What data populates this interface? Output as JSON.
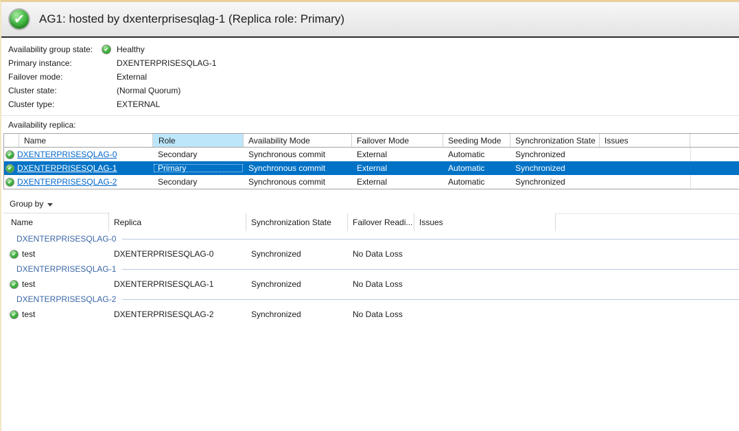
{
  "header": {
    "title": "AG1: hosted by dxenterprisesqlag-1 (Replica role: Primary)",
    "status_icon": "healthy-check-icon"
  },
  "summary": {
    "rows": [
      {
        "label": "Availability group state:",
        "value": "Healthy",
        "icon": "healthy-check-icon"
      },
      {
        "label": "Primary instance:",
        "value": "DXENTERPRISESQLAG-1"
      },
      {
        "label": "Failover mode:",
        "value": "External"
      },
      {
        "label": "Cluster state:",
        "value": "(Normal Quorum)"
      },
      {
        "label": "Cluster type:",
        "value": "EXTERNAL"
      }
    ]
  },
  "replica_section": {
    "label": "Availability replica:",
    "table": {
      "columns": [
        "Name",
        "Role",
        "Availability Mode",
        "Failover Mode",
        "Seeding Mode",
        "Synchronization State",
        "Issues"
      ],
      "sorted_column": "Role",
      "selected_row_index": 1,
      "rows": [
        {
          "icon": "healthy-check-icon",
          "name": "DXENTERPRISESQLAG-0",
          "role": "Secondary",
          "availability_mode": "Synchronous commit",
          "failover_mode": "External",
          "seeding_mode": "Automatic",
          "synchronization_state": "Synchronized",
          "issues": ""
        },
        {
          "icon": "healthy-check-icon",
          "name": "DXENTERPRISESQLAG-1",
          "role": "Primary",
          "availability_mode": "Synchronous commit",
          "failover_mode": "External",
          "seeding_mode": "Automatic",
          "synchronization_state": "Synchronized",
          "issues": ""
        },
        {
          "icon": "healthy-check-icon",
          "name": "DXENTERPRISESQLAG-2",
          "role": "Secondary",
          "availability_mode": "Synchronous commit",
          "failover_mode": "External",
          "seeding_mode": "Automatic",
          "synchronization_state": "Synchronized",
          "issues": ""
        }
      ]
    }
  },
  "group_section": {
    "group_by_label": "Group by",
    "table": {
      "columns": [
        "Name",
        "Replica",
        "Synchronization State",
        "Failover Readi...",
        "Issues"
      ],
      "groups": [
        {
          "label": "DXENTERPRISESQLAG-0",
          "rows": [
            {
              "icon": "healthy-check-icon",
              "name": "test",
              "replica": "DXENTERPRISESQLAG-0",
              "synchronization_state": "Synchronized",
              "failover_readiness": "No Data Loss",
              "issues": ""
            }
          ]
        },
        {
          "label": "DXENTERPRISESQLAG-1",
          "rows": [
            {
              "icon": "healthy-check-icon",
              "name": "test",
              "replica": "DXENTERPRISESQLAG-1",
              "synchronization_state": "Synchronized",
              "failover_readiness": "No Data Loss",
              "issues": ""
            }
          ]
        },
        {
          "label": "DXENTERPRISESQLAG-2",
          "rows": [
            {
              "icon": "healthy-check-icon",
              "name": "test",
              "replica": "DXENTERPRISESQLAG-2",
              "synchronization_state": "Synchronized",
              "failover_readiness": "No Data Loss",
              "issues": ""
            }
          ]
        }
      ]
    }
  },
  "colors": {
    "healthy_green": "#2aa52a",
    "selection_blue": "#0072c6",
    "sorted_header_blue": "#bde6fb",
    "link_blue": "#0066cc",
    "group_label_blue": "#3a67a8",
    "titlebar_gray": "#ededed",
    "accent_tan": "#e9cf9a"
  }
}
